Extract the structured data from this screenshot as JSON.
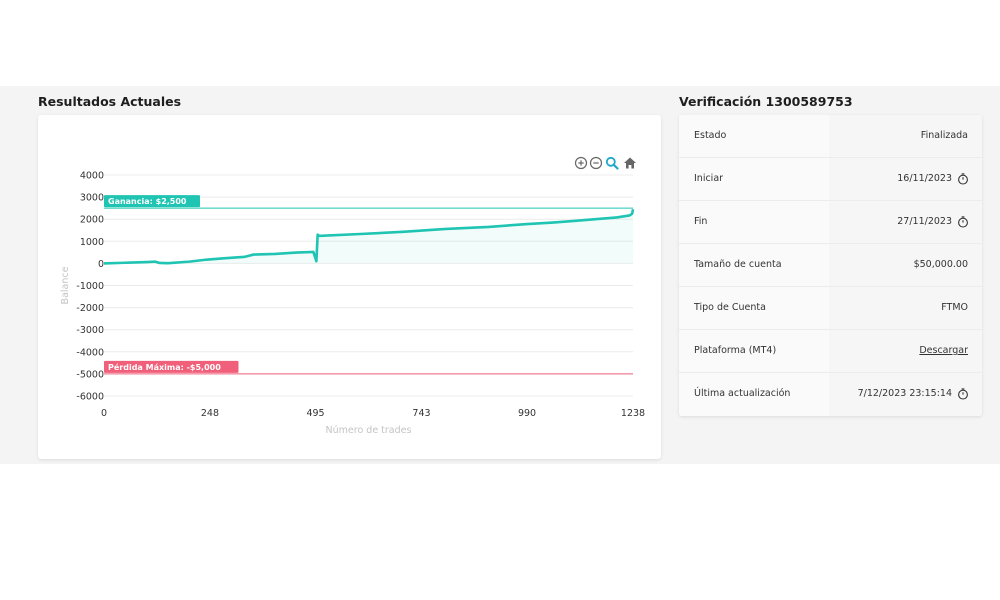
{
  "results": {
    "title": "Resultados Actuales"
  },
  "verification": {
    "title": "Verificación 1300589753",
    "rows": [
      {
        "label": "Estado",
        "value": "Finalizada",
        "icon": ""
      },
      {
        "label": "Iniciar",
        "value": "16/11/2023",
        "icon": "clock-icon"
      },
      {
        "label": "Fin",
        "value": "27/11/2023",
        "icon": "clock-icon"
      },
      {
        "label": "Tamaño de cuenta",
        "value": "$50,000.00",
        "icon": ""
      },
      {
        "label": "Tipo de Cuenta",
        "value": "FTMO",
        "icon": ""
      },
      {
        "label": "Plataforma (MT4)",
        "value": "Descargar",
        "icon": "",
        "link": true
      },
      {
        "label": "Última actualización",
        "value": "7/12/2023 23:15:14",
        "icon": "clock-icon"
      }
    ]
  },
  "toolbar": {
    "icons": [
      "zoom-in-icon",
      "zoom-out-icon",
      "zoom-select-icon",
      "home-icon"
    ]
  },
  "chart_data": {
    "type": "line",
    "title": "",
    "xlabel": "Número de trades",
    "ylabel": "Balance",
    "xlim": [
      0,
      1238
    ],
    "ylim": [
      -6000,
      4000
    ],
    "xticks": [
      0,
      248,
      495,
      743,
      990,
      1238
    ],
    "yticks": [
      4000,
      3000,
      2000,
      1000,
      0,
      -1000,
      -2000,
      -3000,
      -4000,
      -5000,
      -6000
    ],
    "grid": true,
    "series": [
      {
        "name": "",
        "color": "#1fc4b2",
        "x": [
          0,
          50,
          100,
          120,
          130,
          150,
          200,
          240,
          280,
          330,
          350,
          400,
          450,
          490,
          497,
          500,
          503,
          510,
          520,
          600,
          700,
          800,
          900,
          990,
          1050,
          1100,
          1150,
          1200,
          1230,
          1236,
          1238
        ],
        "y": [
          0,
          30,
          60,
          80,
          20,
          10,
          80,
          170,
          230,
          300,
          400,
          430,
          490,
          520,
          100,
          1300,
          1250,
          1250,
          1260,
          1330,
          1430,
          1560,
          1650,
          1780,
          1850,
          1920,
          2000,
          2080,
          2170,
          2250,
          2450
        ]
      }
    ],
    "annotations": [
      {
        "label": "Ganancia: $2,500",
        "y": 2500,
        "color": "#1fc4b2"
      },
      {
        "label": "Pérdida Máxima: -$5,000",
        "y": -5000,
        "color": "#f0607a"
      }
    ]
  }
}
